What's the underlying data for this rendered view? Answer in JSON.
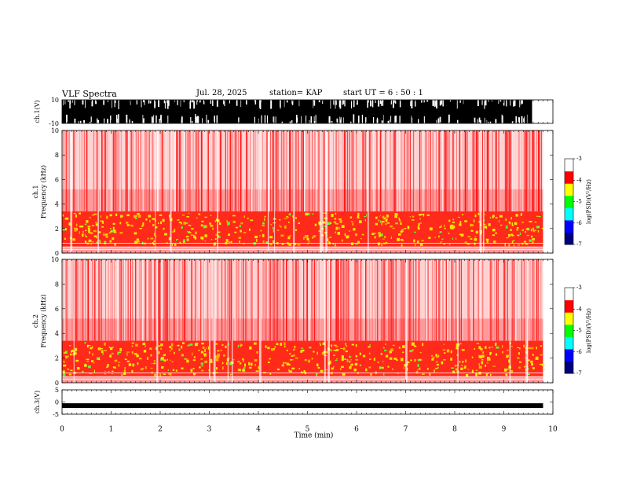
{
  "header": {
    "title": "VLF Spectra",
    "date": "Jul. 28, 2025",
    "station": "station= KAP",
    "start": "start  UT =   6 : 50 : 1"
  },
  "chart_data": [
    {
      "type": "line",
      "panel": "ch1-waveform",
      "ylabel": "ch.1(V)",
      "ylim": [
        -10,
        10
      ],
      "yticks": [
        "10",
        "-10"
      ],
      "xlim": [
        0,
        10
      ],
      "description_values": "saturated waveform spanning -10 to 10 V"
    },
    {
      "type": "heatmap",
      "panel": "ch1-spectrogram",
      "ylabel": "ch.1\nFrequency (kHz)",
      "ylim": [
        0,
        10
      ],
      "yticks": [
        0,
        2,
        4,
        6,
        8,
        10
      ],
      "xlim": [
        0,
        10
      ],
      "colorbar": {
        "label": "log(PSD)(V²/Hz)",
        "range": [
          -7,
          -3
        ],
        "ticks": [
          "-3",
          "-4",
          "-5",
          "-6",
          "-7"
        ],
        "colors": [
          "#00007f",
          "#0000ff",
          "#00ffff",
          "#00ff00",
          "#ffff00",
          "#ff0000",
          "#ffffff"
        ]
      }
    },
    {
      "type": "heatmap",
      "panel": "ch2-spectrogram",
      "ylabel": "ch.2\nFrequency (kHz)",
      "ylim": [
        0,
        10
      ],
      "yticks": [
        0,
        2,
        4,
        6,
        8,
        10
      ],
      "xlim": [
        0,
        10
      ],
      "colorbar": {
        "label": "log(PSD)(V²/Hz)",
        "range": [
          -7,
          -3
        ],
        "ticks": [
          "-3",
          "-4",
          "-5",
          "-6",
          "-7"
        ],
        "colors": [
          "#00007f",
          "#0000ff",
          "#00ffff",
          "#00ff00",
          "#ffff00",
          "#ff0000",
          "#ffffff"
        ]
      }
    },
    {
      "type": "line",
      "panel": "ch3-waveform",
      "ylabel": "ch.3(V)",
      "ylim": [
        -5,
        5
      ],
      "yticks": [
        "5",
        "0",
        "-5"
      ],
      "level": -1.5,
      "xlim": [
        0,
        10
      ],
      "xlabel": "Time  (min)",
      "xticks": [
        0,
        1,
        2,
        3,
        4,
        5,
        6,
        7,
        8,
        9,
        10
      ],
      "data_end": 9.8
    }
  ]
}
